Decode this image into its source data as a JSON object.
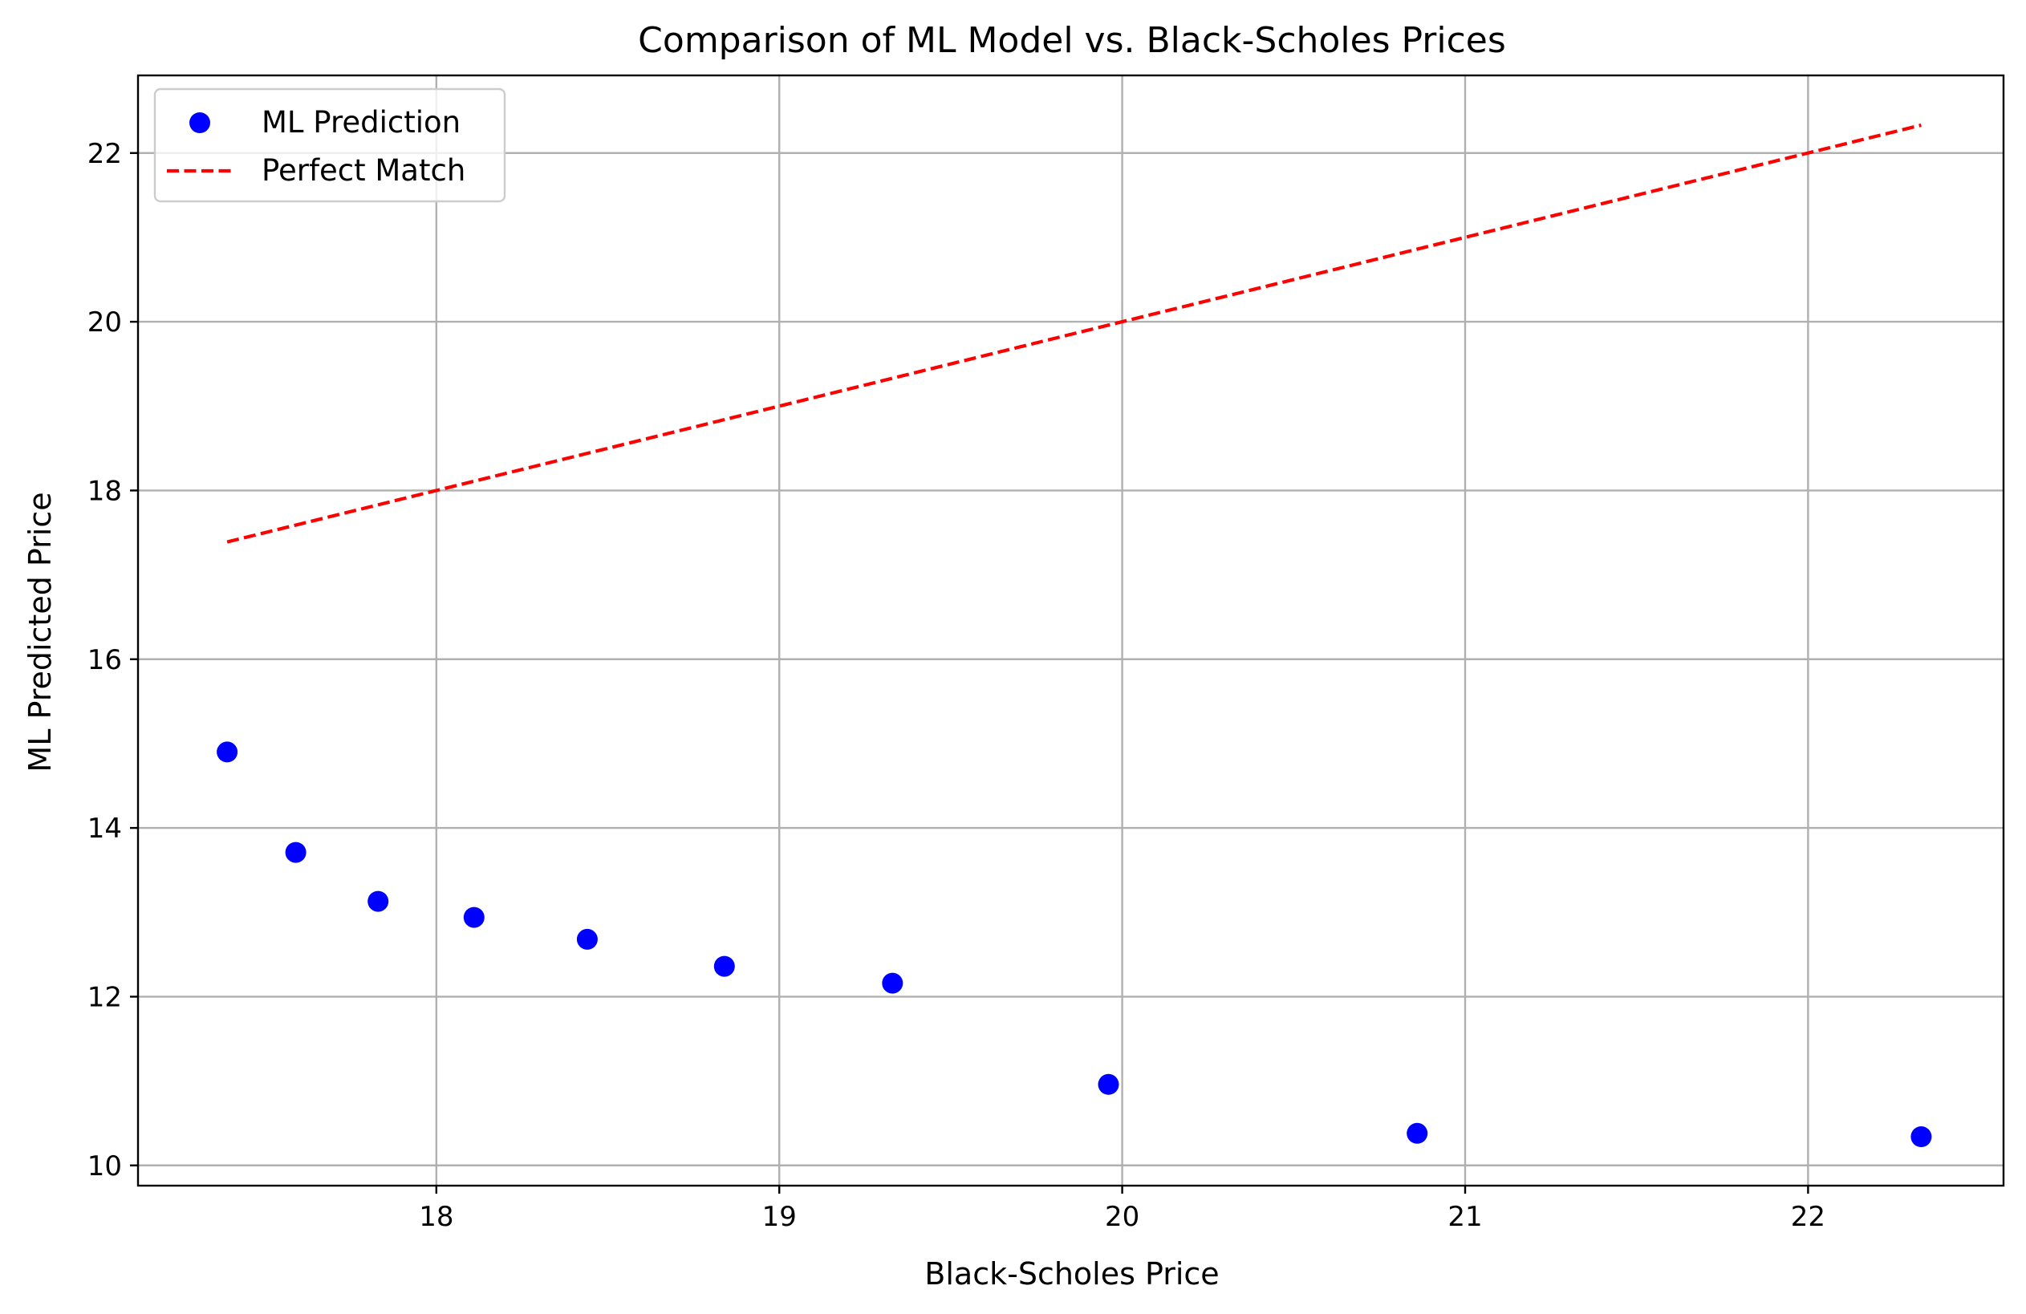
{
  "chart_data": {
    "type": "scatter",
    "title": "Comparison of ML Model vs. Black-Scholes Prices",
    "xlabel": "Black-Scholes Price",
    "ylabel": "ML Predicted Price",
    "xlim": [
      17.13,
      22.57
    ],
    "ylim": [
      9.76,
      22.92
    ],
    "xticks": [
      18,
      19,
      20,
      21,
      22
    ],
    "yticks": [
      10,
      12,
      14,
      16,
      18,
      20,
      22
    ],
    "grid": true,
    "legend_position": "upper-left",
    "series": [
      {
        "name": "ML Prediction",
        "kind": "scatter",
        "color": "#0000ff",
        "points": [
          {
            "x": 17.39,
            "y": 14.9
          },
          {
            "x": 17.59,
            "y": 13.71
          },
          {
            "x": 17.83,
            "y": 13.13
          },
          {
            "x": 18.11,
            "y": 12.94
          },
          {
            "x": 18.44,
            "y": 12.68
          },
          {
            "x": 18.84,
            "y": 12.36
          },
          {
            "x": 19.33,
            "y": 12.16
          },
          {
            "x": 19.96,
            "y": 10.96
          },
          {
            "x": 20.86,
            "y": 10.38
          },
          {
            "x": 22.33,
            "y": 10.34
          }
        ]
      },
      {
        "name": "Perfect Match",
        "kind": "line",
        "style": "dashed",
        "color": "#ff0000",
        "points": [
          {
            "x": 17.39,
            "y": 17.39
          },
          {
            "x": 22.33,
            "y": 22.33
          }
        ]
      }
    ]
  }
}
